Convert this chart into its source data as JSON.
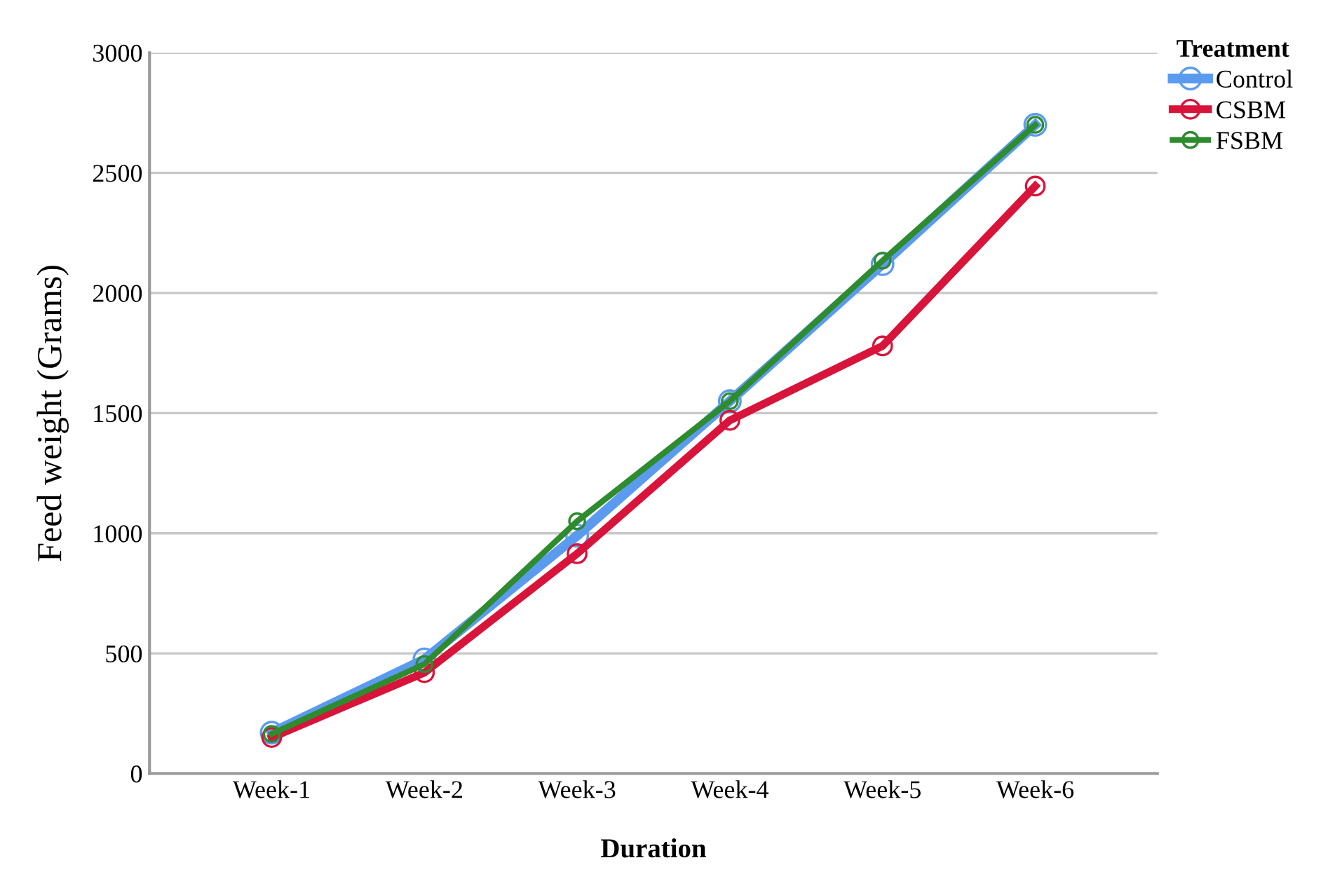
{
  "chart_data": {
    "type": "line",
    "xlabel": "Duration",
    "ylabel": "Feed weight (Grams)",
    "legend_title": "Treatment",
    "categories": [
      "Week-1",
      "Week-2",
      "Week-3",
      "Week-4",
      "Week-5",
      "Week-6"
    ],
    "series": [
      {
        "name": "Control",
        "color": "#5b9bef",
        "values": [
          170,
          475,
          990,
          1550,
          2120,
          2700
        ]
      },
      {
        "name": "CSBM",
        "color": "#d8143a",
        "values": [
          150,
          420,
          915,
          1470,
          1780,
          2445
        ]
      },
      {
        "name": "FSBM",
        "color": "#2e8b2e",
        "values": [
          165,
          455,
          1050,
          1550,
          2135,
          2700
        ]
      }
    ],
    "ylim": [
      0,
      3000
    ],
    "yticks": [
      0,
      500,
      1000,
      1500,
      2000,
      2500,
      3000
    ],
    "grid": "y",
    "legend": "top right",
    "marker": "circle",
    "line_style": "solid"
  }
}
